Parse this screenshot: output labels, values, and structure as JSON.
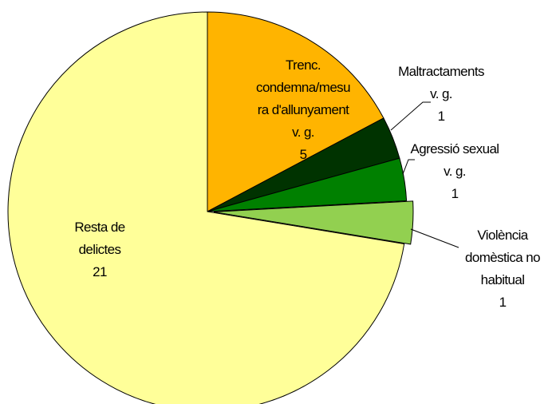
{
  "chart_data": {
    "type": "pie",
    "categories": [
      "Trenc.\ncondemna/mesu\nra d'allunyament\nv. g.",
      "Maltractaments\nv. g.",
      "Agressió sexual\nv. g.",
      "Violència\ndomèstica no\nhabitual",
      "Resta de\ndelictes"
    ],
    "values": [
      5,
      1,
      1,
      1,
      21
    ],
    "colors": [
      "#ffb400",
      "#003300",
      "#008000",
      "#92d050",
      "#ffff99"
    ],
    "exploded": [
      false,
      false,
      false,
      true,
      false
    ]
  }
}
